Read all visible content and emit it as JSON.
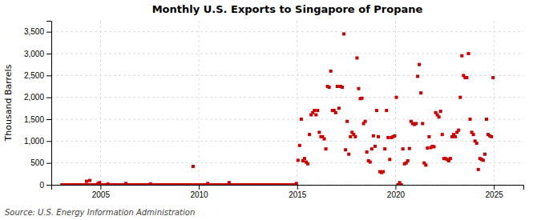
{
  "chart_data": {
    "type": "scatter",
    "title": "Monthly U.S. Exports to Singapore of Propane",
    "y_label": "Thousand Barrels",
    "source": "Source: U.S. Energy Information Administration",
    "color": "#cc0000",
    "marker": "square",
    "grid": true,
    "xlim": [
      2002.5,
      2026.5
    ],
    "ylim": [
      0,
      3750
    ],
    "xticks": [
      2005,
      2010,
      2015,
      2020,
      2025
    ],
    "yticks": [
      0,
      500,
      {
        "value": 1000,
        "label": "1,000"
      },
      {
        "value": 1500,
        "label": "1,500"
      },
      {
        "value": 2000,
        "label": "2,000"
      },
      {
        "value": 2500,
        "label": "2,500"
      },
      {
        "value": 3000,
        "label": "3,000"
      },
      {
        "value": 3500,
        "label": "3,500"
      }
    ],
    "x": [
      2003.041667,
      2003.125,
      2003.208333,
      2003.291667,
      2003.375,
      2003.458333,
      2003.541667,
      2003.625,
      2003.708333,
      2003.791667,
      2003.875,
      2003.958333,
      2004.041667,
      2004.125,
      2004.208333,
      2004.291667,
      2004.375,
      2004.458333,
      2004.541667,
      2004.625,
      2004.708333,
      2004.791667,
      2004.875,
      2004.958333,
      2005.041667,
      2005.125,
      2005.208333,
      2005.291667,
      2005.375,
      2005.458333,
      2005.541667,
      2005.625,
      2005.708333,
      2005.791667,
      2005.875,
      2005.958333,
      2006.041667,
      2006.125,
      2006.208333,
      2006.291667,
      2006.375,
      2006.458333,
      2006.541667,
      2006.625,
      2006.708333,
      2006.791667,
      2006.875,
      2006.958333,
      2007.041667,
      2007.125,
      2007.208333,
      2007.291667,
      2007.375,
      2007.458333,
      2007.541667,
      2007.625,
      2007.708333,
      2007.791667,
      2007.875,
      2007.958333,
      2008.041667,
      2008.125,
      2008.208333,
      2008.291667,
      2008.375,
      2008.458333,
      2008.541667,
      2008.625,
      2008.708333,
      2008.791667,
      2008.875,
      2008.958333,
      2009.041667,
      2009.125,
      2009.208333,
      2009.291667,
      2009.375,
      2009.458333,
      2009.541667,
      2009.625,
      2009.708333,
      2009.791667,
      2009.875,
      2009.958333,
      2010.041667,
      2010.125,
      2010.208333,
      2010.291667,
      2010.375,
      2010.458333,
      2010.541667,
      2010.625,
      2010.708333,
      2010.791667,
      2010.875,
      2010.958333,
      2011.041667,
      2011.125,
      2011.208333,
      2011.291667,
      2011.375,
      2011.458333,
      2011.541667,
      2011.625,
      2011.708333,
      2011.791667,
      2011.875,
      2011.958333,
      2012.041667,
      2012.125,
      2012.208333,
      2012.291667,
      2012.375,
      2012.458333,
      2012.541667,
      2012.625,
      2012.708333,
      2012.791667,
      2012.875,
      2012.958333,
      2013.041667,
      2013.125,
      2013.208333,
      2013.291667,
      2013.375,
      2013.458333,
      2013.541667,
      2013.625,
      2013.708333,
      2013.791667,
      2013.875,
      2013.958333,
      2014.041667,
      2014.125,
      2014.208333,
      2014.291667,
      2014.375,
      2014.458333,
      2014.541667,
      2014.625,
      2014.708333,
      2014.791667,
      2014.875,
      2014.958333,
      2015.041667,
      2015.125,
      2015.208333,
      2015.291667,
      2015.375,
      2015.458333,
      2015.541667,
      2015.625,
      2015.708333,
      2015.791667,
      2015.875,
      2015.958333,
      2016.041667,
      2016.125,
      2016.208333,
      2016.291667,
      2016.375,
      2016.458333,
      2016.541667,
      2016.625,
      2016.708333,
      2016.791667,
      2016.875,
      2016.958333,
      2017.041667,
      2017.125,
      2017.208333,
      2017.291667,
      2017.375,
      2017.458333,
      2017.541667,
      2017.625,
      2017.708333,
      2017.791667,
      2017.875,
      2017.958333,
      2018.041667,
      2018.125,
      2018.208333,
      2018.291667,
      2018.375,
      2018.458333,
      2018.541667,
      2018.625,
      2018.708333,
      2018.791667,
      2018.875,
      2018.958333,
      2019.041667,
      2019.125,
      2019.208333,
      2019.291667,
      2019.375,
      2019.458333,
      2019.541667,
      2019.625,
      2019.708333,
      2019.791667,
      2019.875,
      2019.958333,
      2020.041667,
      2020.125,
      2020.208333,
      2020.291667,
      2020.375,
      2020.458333,
      2020.541667,
      2020.625,
      2020.708333,
      2020.791667,
      2020.875,
      2020.958333,
      2021.041667,
      2021.125,
      2021.208333,
      2021.291667,
      2021.375,
      2021.458333,
      2021.541667,
      2021.625,
      2021.708333,
      2021.791667,
      2021.875,
      2021.958333,
      2022.041667,
      2022.125,
      2022.208333,
      2022.291667,
      2022.375,
      2022.458333,
      2022.541667,
      2022.625,
      2022.708333,
      2022.791667,
      2022.875,
      2022.958333,
      2023.041667,
      2023.125,
      2023.208333,
      2023.291667,
      2023.375,
      2023.458333,
      2023.541667,
      2023.625,
      2023.708333,
      2023.791667,
      2023.875,
      2023.958333,
      2024.041667,
      2024.125,
      2024.208333,
      2024.291667,
      2024.375,
      2024.458333,
      2024.541667,
      2024.625,
      2024.708333,
      2024.791667,
      2024.875,
      2024.958333
    ],
    "values": [
      0,
      0,
      0,
      0,
      0,
      0,
      0,
      0,
      0,
      0,
      0,
      0,
      0,
      0,
      0,
      80,
      0,
      100,
      0,
      0,
      0,
      0,
      30,
      50,
      0,
      0,
      0,
      0,
      20,
      0,
      0,
      0,
      0,
      0,
      0,
      0,
      0,
      0,
      0,
      30,
      0,
      0,
      0,
      0,
      0,
      0,
      0,
      0,
      0,
      0,
      0,
      0,
      0,
      0,
      20,
      0,
      0,
      0,
      0,
      0,
      0,
      0,
      0,
      0,
      0,
      0,
      0,
      0,
      0,
      0,
      0,
      0,
      0,
      0,
      0,
      0,
      0,
      0,
      0,
      0,
      420,
      0,
      0,
      0,
      0,
      0,
      0,
      0,
      0,
      30,
      0,
      0,
      0,
      0,
      0,
      0,
      0,
      0,
      0,
      0,
      0,
      0,
      50,
      0,
      0,
      0,
      0,
      0,
      0,
      0,
      0,
      0,
      0,
      0,
      0,
      0,
      0,
      0,
      0,
      0,
      0,
      0,
      0,
      0,
      0,
      0,
      0,
      0,
      0,
      0,
      0,
      0,
      0,
      0,
      0,
      0,
      0,
      0,
      0,
      0,
      0,
      0,
      0,
      30,
      560,
      900,
      1500,
      550,
      600,
      520,
      480,
      1150,
      1600,
      1650,
      1700,
      1600,
      1700,
      1200,
      1100,
      1100,
      1050,
      820,
      2250,
      2230,
      2600,
      1700,
      1700,
      1650,
      2250,
      1750,
      2250,
      2230,
      3450,
      800,
      1450,
      700,
      1100,
      1200,
      1150,
      1100,
      2900,
      2200,
      1970,
      1980,
      1400,
      1450,
      750,
      550,
      520,
      820,
      1120,
      880,
      1700,
      1100,
      300,
      280,
      300,
      820,
      1700,
      1080,
      580,
      1080,
      1100,
      1120,
      2000,
      0,
      50,
      0,
      820,
      480,
      500,
      550,
      830,
      1450,
      1400,
      1380,
      1400,
      2480,
      2750,
      2100,
      1400,
      500,
      450,
      840,
      1100,
      850,
      880,
      870,
      1650,
      1600,
      1550,
      1680,
      1150,
      600,
      600,
      580,
      550,
      600,
      1100,
      1150,
      1100,
      1200,
      1250,
      2000,
      2950,
      2500,
      2450,
      2450,
      3000,
      1500,
      1200,
      1150,
      1000,
      950,
      350,
      600,
      580,
      560,
      700,
      1500,
      1150,
      1120,
      1100,
      2450
    ]
  }
}
